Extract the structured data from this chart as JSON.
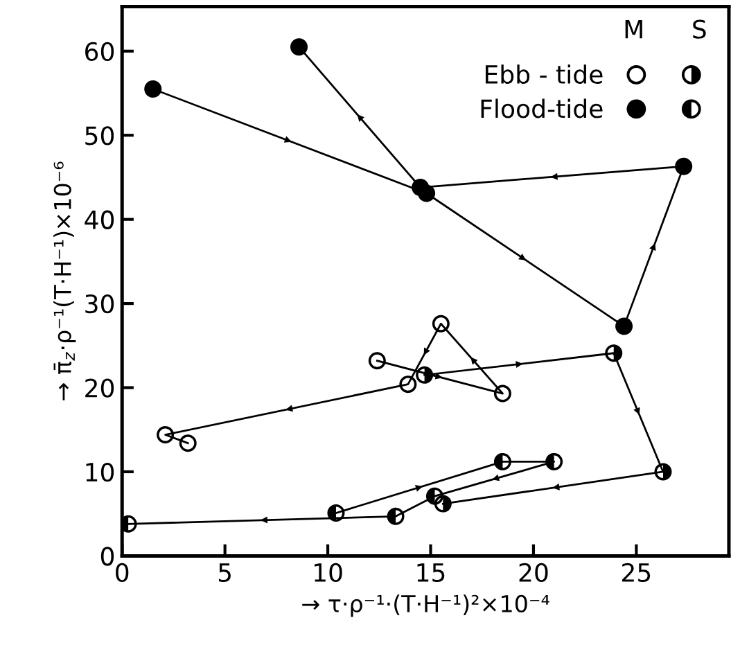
{
  "chart_data": {
    "type": "line",
    "xlabel": "→ τ·ρ⁻¹·(T·H⁻¹)²×10⁻⁴",
    "ylabel": "→ π̄$_{z}$·ρ⁻¹(T·H⁻¹)×10⁻⁶",
    "series": [
      {
        "name": "Ebb - tide",
        "color": "#000000",
        "x": [
          12.4,
          18.5,
          15.5,
          13.9,
          2.1,
          3.2
        ],
        "values": [
          23.2,
          19.3,
          27.6,
          20.4,
          14.4,
          13.4
        ]
      },
      {
        "color": "#000000",
        "x": [
          14.7,
          23.9,
          26.3,
          15.6
        ],
        "values": [
          21.5,
          24.1,
          10.0,
          6.2
        ]
      },
      {
        "name": "Flood-tide",
        "color": "#000000",
        "x": [
          1.5,
          14.8,
          24.4,
          27.3,
          14.5,
          8.6
        ],
        "values": [
          55.5,
          43.1,
          27.3,
          46.3,
          43.8,
          60.5
        ]
      },
      {
        "color": "#000000",
        "x": [
          10.4,
          18.5,
          21.0,
          15.2,
          13.3,
          0.3
        ],
        "values": [
          5.1,
          11.2,
          11.2,
          7.1,
          4.7,
          3.8
        ]
      }
    ],
    "annotations": [
      "M",
      "S"
    ],
    "marker": "circle",
    "line_style": "solid",
    "legend": "top right",
    "grid": false,
    "xlim": [
      0,
      29.5
    ],
    "ylim": [
      0,
      65.3
    ],
    "xticks": [
      0,
      5,
      10,
      15,
      20,
      25
    ],
    "yticks": [
      0,
      10,
      20,
      30,
      40,
      50,
      60
    ]
  }
}
